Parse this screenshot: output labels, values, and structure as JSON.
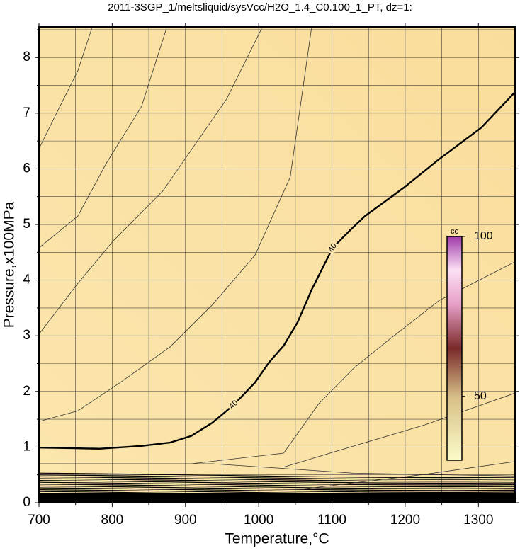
{
  "chart_data": {
    "type": "contour",
    "title": "2011-3SGP_1/meltsliquid/sysVcc/H2O_1.4_C0.100_1_PT, dz=1:",
    "x_label": "Temperature,°C",
    "y_label": "Pressure,x100MPa",
    "xlim": [
      700,
      1350
    ],
    "ylim": [
      0,
      8.55
    ],
    "xticks": [
      700,
      800,
      900,
      1000,
      1100,
      1200,
      1300
    ],
    "yticks": [
      0,
      1,
      2,
      3,
      4,
      5,
      6,
      7,
      8
    ],
    "xgrid": [
      750,
      850,
      950,
      1050,
      1150,
      1250
    ],
    "ygrid": [
      0.5,
      1.5,
      2.5,
      3.5,
      4.5,
      5.5,
      6.5,
      7.5,
      8.5
    ],
    "grid": true,
    "series": [
      {
        "name": "40",
        "color": "#000000",
        "x": [
          700,
          743,
          782,
          840,
          879,
          908,
          937,
          966,
          995,
          1014,
          1034,
          1053,
          1072,
          1101,
          1125,
          1145,
          1198,
          1246,
          1304,
          1350
        ],
        "values": [
          0.99,
          0.98,
          0.97,
          1.02,
          1.08,
          1.2,
          1.44,
          1.76,
          2.16,
          2.52,
          2.82,
          3.24,
          3.82,
          4.58,
          4.9,
          5.15,
          5.66,
          6.17,
          6.74,
          7.38
        ]
      },
      {
        "color": "#333333",
        "x": [
          700,
          724,
          753,
          772
        ],
        "values": [
          6.36,
          7.0,
          7.76,
          8.52
        ]
      },
      {
        "color": "#333333",
        "x": [
          700,
          753,
          792,
          840,
          874
        ],
        "values": [
          4.58,
          5.15,
          6.1,
          7.12,
          8.52
        ]
      },
      {
        "color": "#333333",
        "x": [
          700,
          753,
          801,
          869,
          956,
          1004
        ],
        "values": [
          3.03,
          3.94,
          4.7,
          5.6,
          7.25,
          8.52
        ]
      },
      {
        "color": "#333333",
        "x": [
          700,
          753,
          811,
          879,
          937,
          995,
          1043,
          1072
        ],
        "values": [
          1.46,
          1.65,
          2.16,
          2.8,
          3.56,
          4.45,
          5.85,
          8.52
        ]
      },
      {
        "color": "#333333",
        "x": [
          908,
          1034,
          1082,
          1130,
          1178,
          1246,
          1350
        ],
        "values": [
          0.7,
          0.89,
          1.78,
          2.42,
          2.93,
          3.63,
          4.33
        ]
      },
      {
        "color": "#333333",
        "x": [
          1034,
          1130,
          1227,
          1350
        ],
        "values": [
          0.64,
          1.02,
          1.4,
          1.97
        ]
      },
      {
        "color": "#333333",
        "x": [
          1063,
          1227,
          1350
        ],
        "values": [
          0.25,
          0.51,
          0.74
        ]
      },
      {
        "color": "#333333",
        "x": [
          700,
          937,
          1130,
          1350
        ],
        "values": [
          0.7,
          0.7,
          0.53,
          0.48
        ]
      }
    ],
    "colorbar": {
      "label": "cc",
      "lim": [
        30,
        100
      ],
      "ticks": [
        50,
        100
      ]
    }
  }
}
